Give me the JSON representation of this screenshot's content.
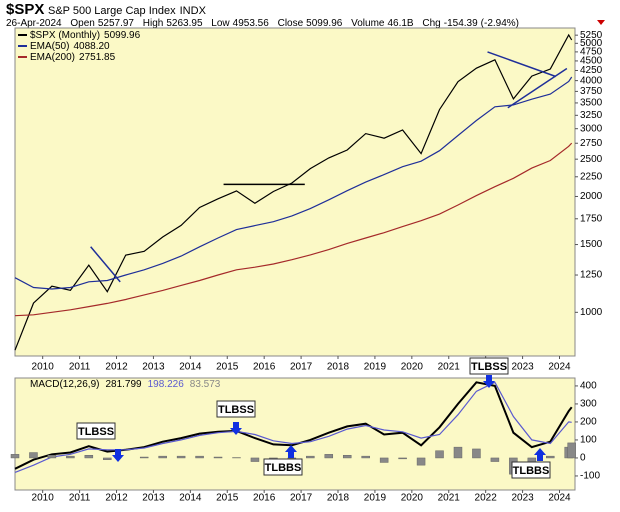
{
  "header": {
    "symbol": "$SPX",
    "name": "S&P 500 Large Cap Index",
    "exchange": "INDX",
    "date": "26-Apr-2024",
    "open": {
      "label": "Open",
      "value": 5257.97
    },
    "high": {
      "label": "High",
      "value": 5263.95
    },
    "low": {
      "label": "Low",
      "value": 4953.56
    },
    "close": {
      "label": "Close",
      "value": 5099.96
    },
    "volume": {
      "label": "Volume",
      "text": "46.1B"
    },
    "change": {
      "label": "Chg",
      "value": -154.39,
      "pct_label": "(-2.94%)"
    }
  },
  "chart_data": [
    {
      "type": "line",
      "log_scale": true,
      "grid": false,
      "x": [
        2009.25,
        2009.75,
        2010.25,
        2010.75,
        2011.25,
        2011.75,
        2012.25,
        2012.75,
        2013.25,
        2013.75,
        2014.25,
        2014.75,
        2015.25,
        2015.75,
        2016.25,
        2016.75,
        2017.25,
        2017.75,
        2018.25,
        2018.75,
        2019.25,
        2019.75,
        2020.25,
        2020.75,
        2021.25,
        2021.75,
        2022.25,
        2022.75,
        2023.25,
        2023.75,
        2024.25,
        2024.33
      ],
      "xlim": [
        2009.25,
        2024.42
      ],
      "xticks": [
        2010,
        2011,
        2012,
        2013,
        2014,
        2015,
        2016,
        2017,
        2018,
        2019,
        2020,
        2021,
        2022,
        2023,
        2024
      ],
      "ylim": [
        770,
        5480
      ],
      "yticks": [
        1000,
        1250,
        1500,
        1750,
        2000,
        2250,
        2500,
        2750,
        3000,
        3250,
        3500,
        3750,
        4000,
        4250,
        4500,
        4750,
        5000,
        5250
      ],
      "series": [
        {
          "name": "$SPX (Monthly)",
          "color": "#000000",
          "last": 5099.96,
          "values": [
            797,
            1057,
            1169,
            1141,
            1326,
            1131,
            1408,
            1441,
            1569,
            1682,
            1872,
            1972,
            2068,
            1920,
            2060,
            2168,
            2363,
            2519,
            2641,
            2914,
            2834,
            2977,
            2585,
            3363,
            3973,
            4308,
            4530,
            3586,
            4109,
            4288,
            5254,
            5099.96
          ]
        },
        {
          "name": "EMA(50)",
          "color": "#1f2f99",
          "last": {
            "value": 4088.2,
            "label": "4088.20"
          },
          "values": [
            1230,
            1160,
            1150,
            1160,
            1200,
            1210,
            1250,
            1290,
            1340,
            1400,
            1480,
            1560,
            1640,
            1680,
            1720,
            1780,
            1860,
            1960,
            2070,
            2180,
            2280,
            2390,
            2470,
            2630,
            2880,
            3150,
            3420,
            3460,
            3580,
            3690,
            3980,
            4088.2
          ]
        },
        {
          "name": "EMA(200)",
          "color": "#a52a2a",
          "last": 2751.85,
          "values": [
            980,
            985,
            1000,
            1015,
            1035,
            1055,
            1080,
            1110,
            1140,
            1175,
            1210,
            1250,
            1290,
            1310,
            1335,
            1370,
            1410,
            1455,
            1510,
            1560,
            1610,
            1670,
            1730,
            1800,
            1900,
            2010,
            2120,
            2230,
            2370,
            2480,
            2700,
            2751.85
          ]
        }
      ],
      "trendlines": [
        {
          "color": "#000000",
          "x": [
            2014.9,
            2017.1
          ],
          "y": [
            2150,
            2150
          ]
        },
        {
          "color": "#1f2f99",
          "x": [
            2011.3,
            2012.1
          ],
          "y": [
            1480,
            1200
          ]
        },
        {
          "color": "#1f2f99",
          "x": [
            2022.05,
            2023.9
          ],
          "y": [
            4750,
            4100
          ]
        },
        {
          "color": "#1f2f99",
          "x": [
            2022.6,
            2024.2
          ],
          "y": [
            3400,
            4300
          ]
        }
      ]
    },
    {
      "type": "line",
      "grid": false,
      "title": "MACD(12,26,9)",
      "x": [
        2009.25,
        2009.75,
        2010.25,
        2010.75,
        2011.25,
        2011.75,
        2012.25,
        2012.75,
        2013.25,
        2013.75,
        2014.25,
        2014.75,
        2015.25,
        2015.75,
        2016.25,
        2016.75,
        2017.25,
        2017.75,
        2018.25,
        2018.75,
        2019.25,
        2019.75,
        2020.25,
        2020.75,
        2021.25,
        2021.75,
        2022.25,
        2022.75,
        2023.25,
        2023.75,
        2024.25,
        2024.33
      ],
      "xlim": [
        2009.25,
        2024.42
      ],
      "xticks": [
        2010,
        2011,
        2012,
        2013,
        2014,
        2015,
        2016,
        2017,
        2018,
        2019,
        2020,
        2021,
        2022,
        2023,
        2024
      ],
      "ylim": [
        -178,
        444
      ],
      "yticks": [
        400,
        300,
        200,
        100,
        0,
        -100
      ],
      "series": [
        {
          "name": "MACD",
          "color": "#000000",
          "last": 281.799,
          "values": [
            -60,
            -10,
            20,
            30,
            65,
            35,
            45,
            60,
            90,
            110,
            135,
            145,
            150,
            110,
            75,
            70,
            100,
            140,
            175,
            190,
            130,
            140,
            70,
            170,
            300,
            420,
            400,
            140,
            60,
            90,
            260,
            281.799
          ]
        },
        {
          "name": "Signal",
          "color": "#5a5ad0",
          "last": 198.226,
          "values": [
            -80,
            -40,
            5,
            20,
            50,
            45,
            45,
            55,
            80,
            100,
            125,
            140,
            148,
            130,
            95,
            80,
            90,
            120,
            160,
            180,
            155,
            145,
            110,
            130,
            240,
            370,
            420,
            230,
            100,
            80,
            200,
            198.226
          ]
        },
        {
          "name": "Histogram",
          "color": "#888888",
          "kind": "bar",
          "last": 83.573,
          "values": [
            20,
            30,
            15,
            10,
            15,
            -10,
            0,
            5,
            10,
            10,
            10,
            5,
            2,
            -20,
            -20,
            -10,
            10,
            20,
            15,
            10,
            -25,
            -5,
            -40,
            40,
            60,
            50,
            -20,
            -90,
            -40,
            10,
            60,
            83.573
          ]
        }
      ],
      "annotations": [
        "TLBSS",
        "TLBSS",
        "TLBBS",
        "TLBSS",
        "TLBBS"
      ]
    }
  ]
}
